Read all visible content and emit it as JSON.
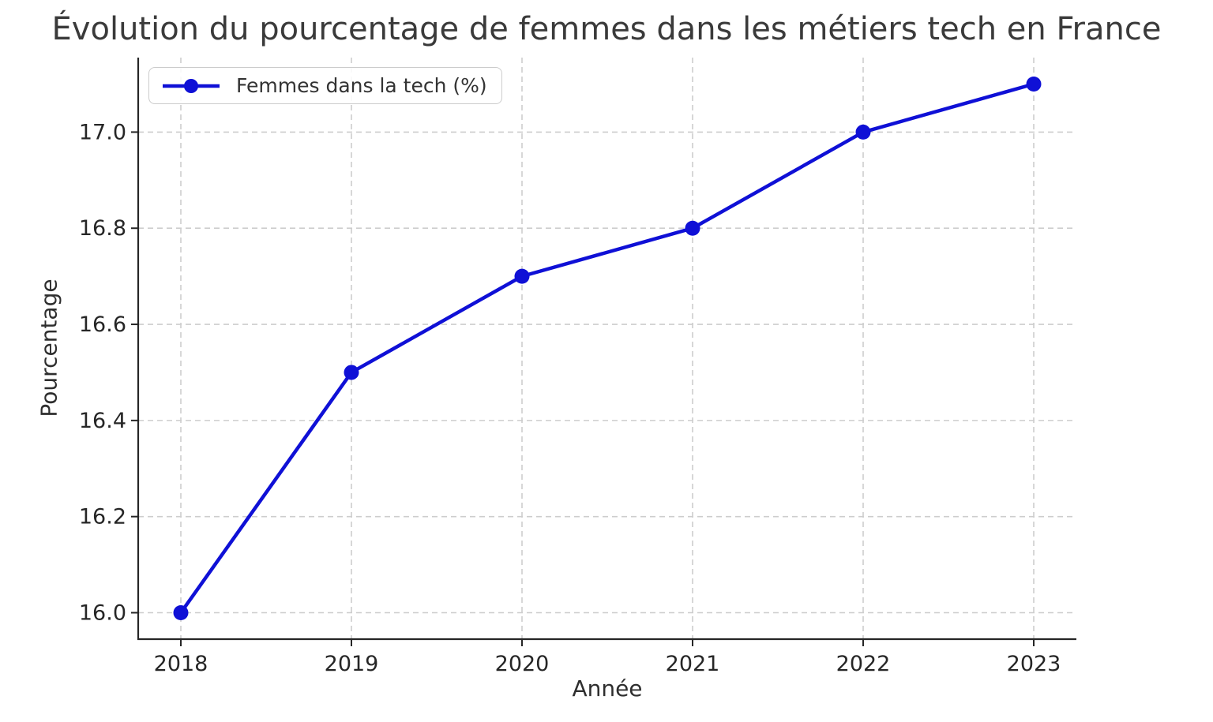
{
  "chart_data": {
    "type": "line",
    "title": "Évolution du pourcentage de femmes dans les métiers tech en France",
    "xlabel": "Année",
    "ylabel": "Pourcentage",
    "legend": [
      "Femmes dans la tech (%)"
    ],
    "legend_position": "upper left",
    "x": [
      2018,
      2019,
      2020,
      2021,
      2022,
      2023
    ],
    "series": [
      {
        "name": "Femmes dans la tech (%)",
        "values": [
          16.0,
          16.5,
          16.7,
          16.8,
          17.0,
          17.1
        ],
        "color": "#0f10d6",
        "marker": "circle"
      }
    ],
    "xticks": [
      2018,
      2019,
      2020,
      2021,
      2022,
      2023
    ],
    "xtick_labels": [
      "2018",
      "2019",
      "2020",
      "2021",
      "2022",
      "2023"
    ],
    "yticks": [
      16.0,
      16.2,
      16.4,
      16.6,
      16.8,
      17.0
    ],
    "ytick_labels": [
      "16.0",
      "16.2",
      "16.4",
      "16.6",
      "16.8",
      "17.0"
    ],
    "xlim": [
      2017.75,
      2023.25
    ],
    "ylim": [
      15.945,
      17.155
    ],
    "grid": true,
    "grid_style": "dashed",
    "spines": [
      "left",
      "bottom"
    ],
    "colors": {
      "line": "#0f10d6",
      "grid": "#cdcdcd",
      "axis": "#262626",
      "tick_labels": "#262626",
      "title": "#3a3a3a",
      "axis_labels": "#2e2e2e",
      "legend_border": "#cccccc",
      "background": "#ffffff"
    }
  }
}
